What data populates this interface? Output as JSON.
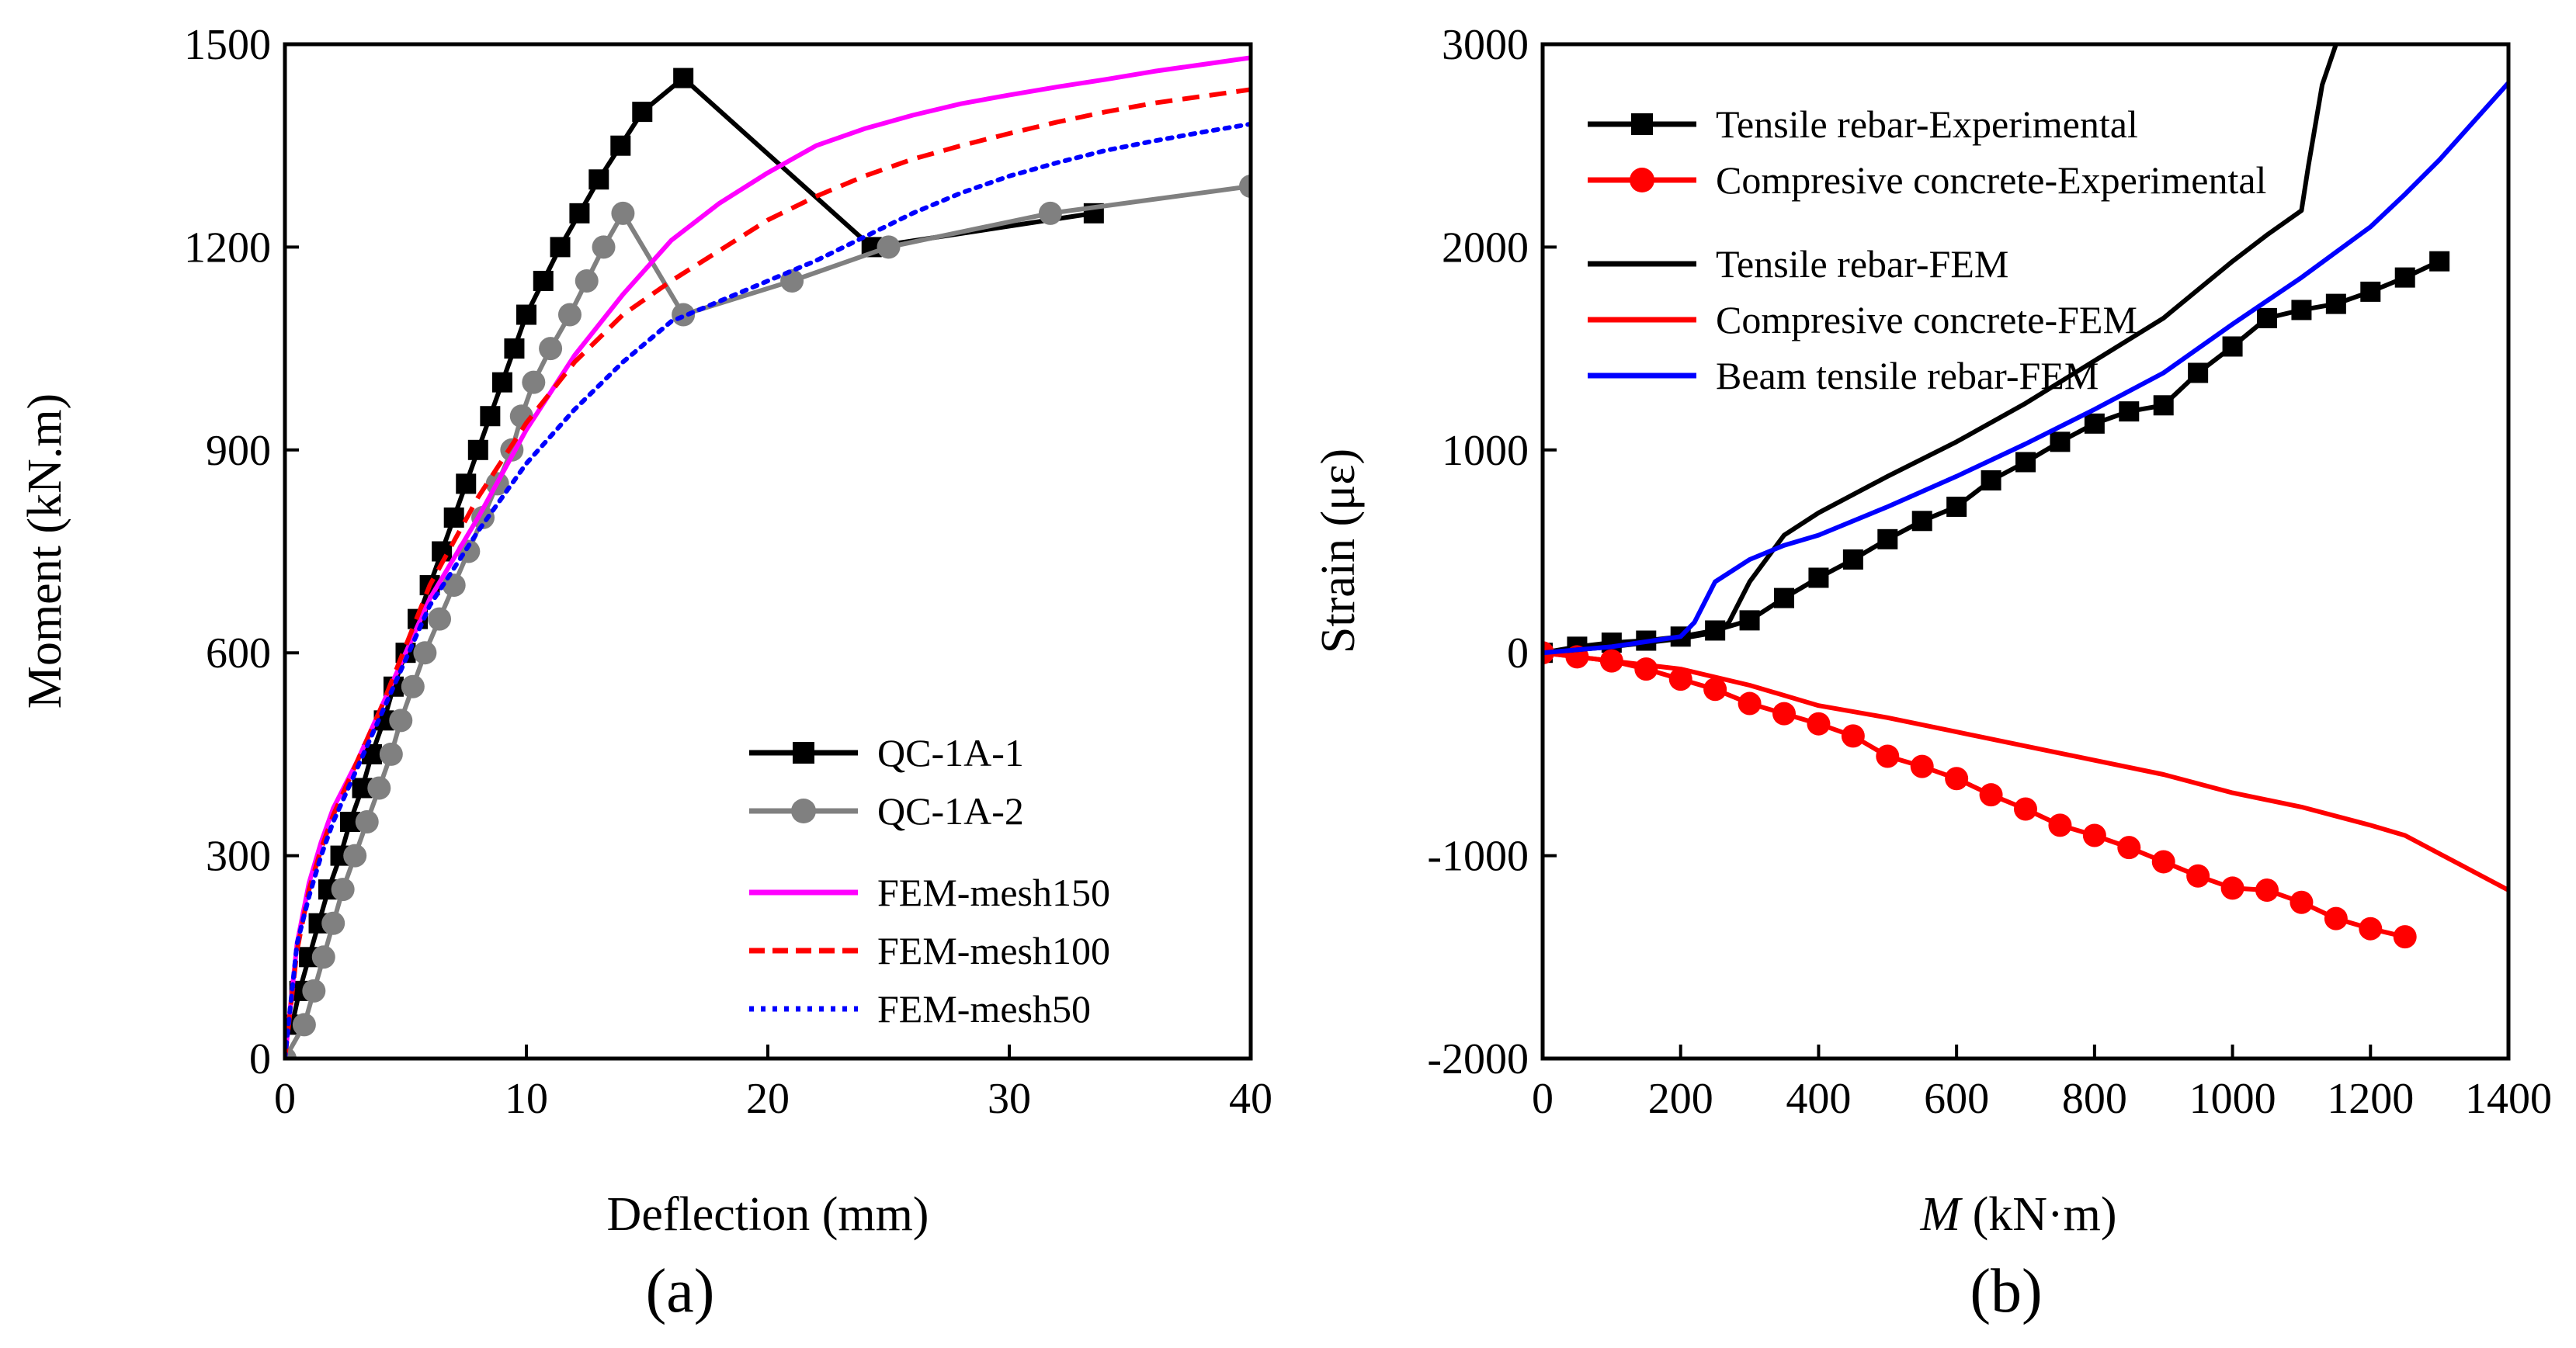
{
  "figure": {
    "panel_a_label": "(a)",
    "panel_b_label": "(b)"
  },
  "chart_data": [
    {
      "type": "line",
      "panel": "(a)",
      "xlabel": "Deflection (mm)",
      "ylabel": "Moment (kN.m)",
      "xlim": [
        0,
        40
      ],
      "ylim": [
        0,
        1500
      ],
      "xticks": [
        0,
        10,
        20,
        30,
        40
      ],
      "yticks": [
        0,
        300,
        600,
        900,
        1200,
        1500
      ],
      "legend_position": "bottom-right",
      "series": [
        {
          "name": "QC-1A-1",
          "color": "#000000",
          "style": "solid",
          "marker": "square",
          "x": [
            0.3,
            0.6,
            1.0,
            1.4,
            1.8,
            2.3,
            2.7,
            3.2,
            3.6,
            4.1,
            4.5,
            5.0,
            5.5,
            6.0,
            6.5,
            7.0,
            7.5,
            8.0,
            8.5,
            9.0,
            9.5,
            10.0,
            10.7,
            11.4,
            12.2,
            13.0,
            13.9,
            14.8,
            16.5,
            24.3,
            33.5
          ],
          "y": [
            50,
            100,
            150,
            200,
            250,
            300,
            350,
            400,
            450,
            500,
            550,
            600,
            650,
            700,
            750,
            800,
            850,
            900,
            950,
            1000,
            1050,
            1100,
            1150,
            1200,
            1250,
            1300,
            1350,
            1400,
            1450,
            1200,
            1250
          ]
        },
        {
          "name": "QC-1A-2",
          "color": "#808080",
          "style": "solid",
          "marker": "circle",
          "x": [
            0,
            0.8,
            1.2,
            1.6,
            2.0,
            2.4,
            2.9,
            3.4,
            3.9,
            4.4,
            4.8,
            5.3,
            5.8,
            6.4,
            7.0,
            7.6,
            8.2,
            8.8,
            9.4,
            9.8,
            10.3,
            11.0,
            11.8,
            12.5,
            13.2,
            14.0,
            16.5,
            21.0,
            25.0,
            31.7,
            40.0
          ],
          "y": [
            0,
            50,
            100,
            150,
            200,
            250,
            300,
            350,
            400,
            450,
            500,
            550,
            600,
            650,
            700,
            750,
            800,
            850,
            900,
            950,
            1000,
            1050,
            1100,
            1150,
            1200,
            1250,
            1100,
            1150,
            1200,
            1250,
            1290
          ]
        },
        {
          "name": "FEM-mesh150",
          "color": "#ff00ff",
          "style": "solid",
          "marker": "none",
          "x": [
            0,
            0.5,
            1.0,
            1.5,
            2.0,
            3.0,
            4.0,
            5.0,
            6.0,
            8.0,
            10.0,
            12.0,
            14.0,
            16.0,
            18.0,
            20.0,
            22.0,
            24.0,
            26.0,
            28.0,
            30.0,
            32.0,
            34.0,
            36.0,
            38.0,
            40.0
          ],
          "y": [
            0,
            170,
            260,
            320,
            370,
            440,
            520,
            600,
            680,
            800,
            930,
            1040,
            1130,
            1210,
            1265,
            1310,
            1350,
            1375,
            1395,
            1412,
            1425,
            1437,
            1448,
            1460,
            1470,
            1480
          ]
        },
        {
          "name": "FEM-mesh100",
          "color": "#ff0000",
          "style": "dashed",
          "marker": "none",
          "x": [
            0,
            0.5,
            1.0,
            1.5,
            2.0,
            3.0,
            4.0,
            5.0,
            6.0,
            8.0,
            10.0,
            12.0,
            14.0,
            16.0,
            18.0,
            20.0,
            22.0,
            24.0,
            26.0,
            28.0,
            30.0,
            32.0,
            34.0,
            36.0,
            38.0,
            40.0
          ],
          "y": [
            0,
            160,
            250,
            310,
            360,
            440,
            520,
            610,
            700,
            830,
            940,
            1030,
            1100,
            1150,
            1195,
            1240,
            1275,
            1305,
            1330,
            1350,
            1368,
            1385,
            1400,
            1413,
            1423,
            1433
          ]
        },
        {
          "name": "FEM-mesh50",
          "color": "#0000ff",
          "style": "dotted",
          "marker": "none",
          "x": [
            0,
            0.5,
            1.0,
            1.5,
            2.0,
            3.0,
            4.0,
            5.0,
            6.0,
            8.0,
            10.0,
            12.0,
            14.0,
            16.0,
            18.0,
            20.0,
            22.0,
            24.0,
            26.0,
            28.0,
            30.0,
            32.0,
            34.0,
            36.0,
            38.0,
            40.0
          ],
          "y": [
            0,
            170,
            240,
            300,
            350,
            430,
            510,
            590,
            670,
            780,
            880,
            960,
            1030,
            1090,
            1120,
            1150,
            1180,
            1215,
            1250,
            1280,
            1305,
            1325,
            1343,
            1357,
            1370,
            1382
          ]
        }
      ]
    },
    {
      "type": "line",
      "panel": "(b)",
      "xlabel_italic": "M",
      "xlabel_rest": " (kN·m)",
      "ylabel": "Strain (με)",
      "xlim": [
        0,
        1400
      ],
      "ylim": [
        -2000,
        3000
      ],
      "xticks": [
        0,
        200,
        400,
        600,
        800,
        1000,
        1200,
        1400
      ],
      "yticks": [
        -2000,
        -1000,
        0,
        1000,
        2000,
        3000
      ],
      "legend_position": "top-left",
      "series": [
        {
          "name": "Tensile rebar-Experimental",
          "color": "#000000",
          "style": "solid",
          "marker": "square",
          "x": [
            0,
            50,
            100,
            150,
            200,
            250,
            300,
            350,
            400,
            450,
            500,
            550,
            600,
            650,
            700,
            750,
            800,
            850,
            900,
            950,
            1000,
            1050,
            1100,
            1150,
            1200,
            1250,
            1300
          ],
          "y": [
            0,
            30,
            50,
            60,
            80,
            110,
            160,
            270,
            370,
            460,
            560,
            650,
            720,
            850,
            940,
            1040,
            1130,
            1190,
            1220,
            1380,
            1510,
            1650,
            1690,
            1720,
            1780,
            1850,
            1930
          ]
        },
        {
          "name": "Compresive concrete-Experimental",
          "color": "#ff0000",
          "style": "solid",
          "marker": "circle",
          "x": [
            0,
            50,
            100,
            150,
            200,
            250,
            300,
            350,
            400,
            450,
            500,
            550,
            600,
            650,
            700,
            750,
            800,
            850,
            900,
            950,
            1000,
            1050,
            1100,
            1150,
            1200,
            1250
          ],
          "y": [
            0,
            -20,
            -40,
            -80,
            -130,
            -180,
            -250,
            -300,
            -350,
            -410,
            -510,
            -560,
            -620,
            -700,
            -770,
            -850,
            -900,
            -960,
            -1030,
            -1100,
            -1160,
            -1170,
            -1230,
            -1310,
            -1360,
            -1400
          ]
        },
        {
          "name": "Tensile rebar-FEM",
          "color": "#000000",
          "style": "solid",
          "marker": "none",
          "x": [
            0,
            100,
            200,
            250,
            270,
            300,
            350,
            400,
            500,
            600,
            700,
            800,
            900,
            1000,
            1050,
            1100,
            1110,
            1130,
            1150
          ],
          "y": [
            0,
            30,
            70,
            100,
            150,
            350,
            580,
            690,
            870,
            1040,
            1230,
            1440,
            1650,
            1930,
            2060,
            2180,
            2400,
            2800,
            3000
          ]
        },
        {
          "name": "Compresive concrete-FEM",
          "color": "#ff0000",
          "style": "solid",
          "marker": "none",
          "x": [
            0,
            100,
            200,
            300,
            400,
            500,
            600,
            700,
            800,
            900,
            1000,
            1100,
            1200,
            1250,
            1300,
            1350,
            1400
          ],
          "y": [
            0,
            -40,
            -80,
            -160,
            -260,
            -320,
            -390,
            -460,
            -530,
            -600,
            -690,
            -760,
            -850,
            -900,
            -990,
            -1080,
            -1170
          ]
        },
        {
          "name": "Beam tensile rebar-FEM",
          "color": "#0000ff",
          "style": "solid",
          "marker": "none",
          "x": [
            0,
            100,
            200,
            220,
            250,
            300,
            350,
            400,
            500,
            600,
            700,
            800,
            900,
            1000,
            1100,
            1200,
            1250,
            1300,
            1350,
            1400
          ],
          "y": [
            0,
            30,
            80,
            150,
            350,
            460,
            530,
            580,
            720,
            870,
            1030,
            1200,
            1380,
            1620,
            1850,
            2100,
            2260,
            2430,
            2620,
            2810
          ]
        }
      ]
    }
  ]
}
